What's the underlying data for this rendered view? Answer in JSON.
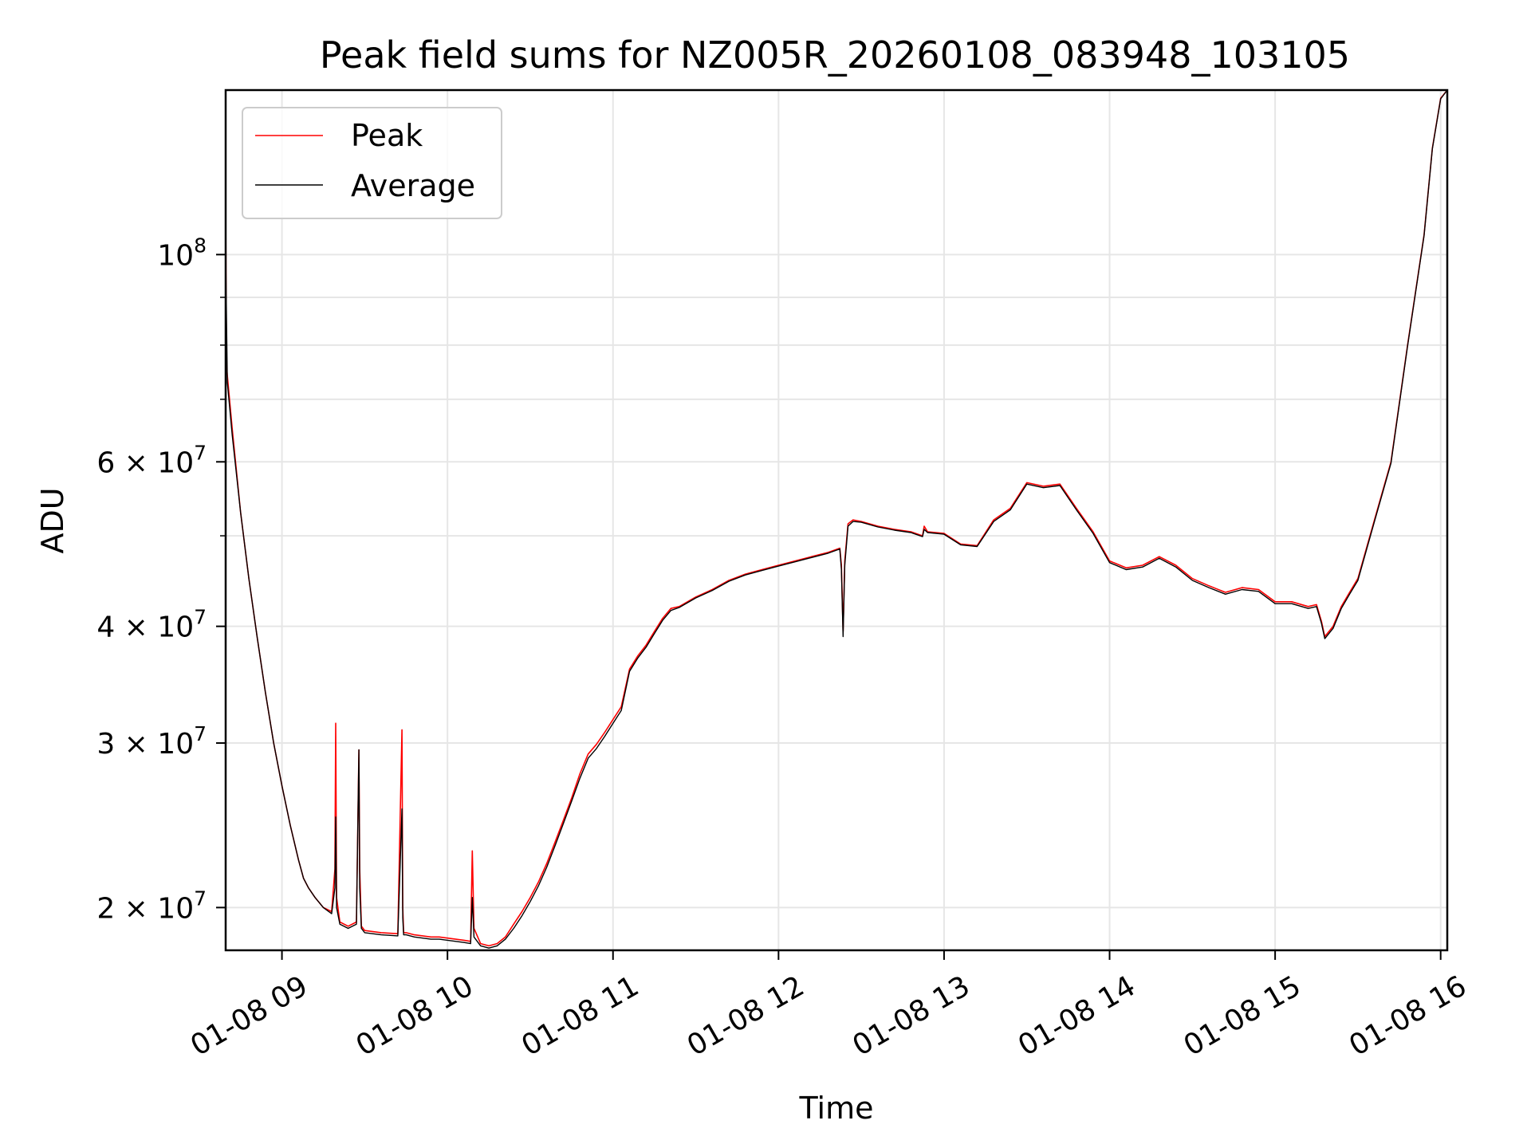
{
  "chart_data": {
    "type": "line",
    "title": "Peak field sums for NZ005R_20260108_083948_103105",
    "xlabel": "Time",
    "ylabel": "ADU",
    "yscale": "log",
    "xlim": [
      8.66,
      16.04
    ],
    "ylim": [
      18000000,
      150000000
    ],
    "grid": true,
    "legend_position": "top-left",
    "x_ticks": [
      {
        "value": 9,
        "label": "01-08 09"
      },
      {
        "value": 10,
        "label": "01-08 10"
      },
      {
        "value": 11,
        "label": "01-08 11"
      },
      {
        "value": 12,
        "label": "01-08 12"
      },
      {
        "value": 13,
        "label": "01-08 13"
      },
      {
        "value": 14,
        "label": "01-08 14"
      },
      {
        "value": 15,
        "label": "01-08 15"
      },
      {
        "value": 16,
        "label": "01-08 16"
      }
    ],
    "y_ticks": [
      {
        "value": 20000000,
        "base": "2 × 10",
        "exp": "7"
      },
      {
        "value": 30000000,
        "base": "3 × 10",
        "exp": "7"
      },
      {
        "value": 40000000,
        "base": "4 × 10",
        "exp": "7"
      },
      {
        "value": 60000000,
        "base": "6 × 10",
        "exp": "7"
      },
      {
        "value": 100000000,
        "base": "10",
        "exp": "8"
      }
    ],
    "y_minor_ticks": [
      50000000,
      70000000,
      80000000,
      90000000
    ],
    "series": [
      {
        "name": "Peak",
        "color": "#ff0000",
        "x": [
          8.66,
          8.665,
          8.7,
          8.75,
          8.8,
          8.85,
          8.9,
          8.95,
          9.0,
          9.05,
          9.1,
          9.13,
          9.16,
          9.2,
          9.25,
          9.3,
          9.32,
          9.325,
          9.33,
          9.35,
          9.4,
          9.45,
          9.465,
          9.47,
          9.48,
          9.5,
          9.6,
          9.7,
          9.725,
          9.73,
          9.735,
          9.75,
          9.8,
          9.85,
          9.9,
          9.95,
          10.0,
          10.05,
          10.1,
          10.14,
          10.15,
          10.16,
          10.2,
          10.25,
          10.3,
          10.35,
          10.4,
          10.45,
          10.5,
          10.55,
          10.6,
          10.65,
          10.7,
          10.75,
          10.8,
          10.85,
          10.9,
          10.95,
          11.0,
          11.05,
          11.1,
          11.15,
          11.2,
          11.25,
          11.3,
          11.35,
          11.4,
          11.5,
          11.6,
          11.7,
          11.8,
          11.9,
          12.0,
          12.1,
          12.2,
          12.3,
          12.37,
          12.38,
          12.39,
          12.4,
          12.42,
          12.45,
          12.5,
          12.6,
          12.7,
          12.8,
          12.87,
          12.88,
          12.9,
          13.0,
          13.1,
          13.2,
          13.3,
          13.4,
          13.5,
          13.6,
          13.7,
          13.8,
          13.9,
          14.0,
          14.1,
          14.2,
          14.3,
          14.4,
          14.5,
          14.6,
          14.7,
          14.8,
          14.9,
          15.0,
          15.1,
          15.2,
          15.25,
          15.28,
          15.3,
          15.35,
          15.4,
          15.45,
          15.5,
          15.6,
          15.7,
          15.8,
          15.9,
          15.95,
          16.0,
          16.04
        ],
        "values": [
          114000000,
          76000000,
          65000000,
          53000000,
          45000000,
          39000000,
          34000000,
          30000000,
          27000000,
          24500000,
          22500000,
          21500000,
          21000000,
          20500000,
          20000000,
          19800000,
          22000000,
          31500000,
          20500000,
          19300000,
          19100000,
          19300000,
          29500000,
          22000000,
          19100000,
          18900000,
          18800000,
          18750000,
          31000000,
          20000000,
          18800000,
          18800000,
          18700000,
          18650000,
          18600000,
          18600000,
          18550000,
          18500000,
          18450000,
          18400000,
          23000000,
          19000000,
          18300000,
          18200000,
          18300000,
          18600000,
          19200000,
          19800000,
          20500000,
          21300000,
          22300000,
          23500000,
          24800000,
          26200000,
          27800000,
          29200000,
          29900000,
          30800000,
          31800000,
          32800000,
          36000000,
          37200000,
          38200000,
          39500000,
          40800000,
          41800000,
          42000000,
          43000000,
          43800000,
          44800000,
          45500000,
          46000000,
          46500000,
          47000000,
          47500000,
          48000000,
          48500000,
          46500000,
          39500000,
          47000000,
          51500000,
          52000000,
          51800000,
          51200000,
          50800000,
          50500000,
          50000000,
          51200000,
          50500000,
          50300000,
          49000000,
          48800000,
          52000000,
          53500000,
          57000000,
          56500000,
          56800000,
          53500000,
          50500000,
          47000000,
          46200000,
          46500000,
          47500000,
          46500000,
          45000000,
          44200000,
          43500000,
          44000000,
          43800000,
          42500000,
          42500000,
          42000000,
          42200000,
          40500000,
          39000000,
          40000000,
          42000000,
          43500000,
          45000000,
          52000000,
          60000000,
          80000000,
          105000000,
          130000000,
          147000000,
          150000000
        ]
      },
      {
        "name": "Average",
        "color": "#000000",
        "x": [
          8.66,
          8.67,
          8.7,
          8.75,
          8.8,
          8.85,
          8.9,
          8.95,
          9.0,
          9.05,
          9.1,
          9.13,
          9.16,
          9.2,
          9.25,
          9.3,
          9.32,
          9.325,
          9.33,
          9.35,
          9.4,
          9.45,
          9.465,
          9.47,
          9.48,
          9.5,
          9.6,
          9.7,
          9.725,
          9.73,
          9.735,
          9.75,
          9.8,
          9.85,
          9.9,
          9.95,
          10.0,
          10.05,
          10.1,
          10.14,
          10.15,
          10.16,
          10.2,
          10.25,
          10.3,
          10.35,
          10.4,
          10.45,
          10.5,
          10.55,
          10.6,
          10.65,
          10.7,
          10.75,
          10.8,
          10.85,
          10.9,
          10.95,
          11.0,
          11.05,
          11.1,
          11.15,
          11.2,
          11.25,
          11.3,
          11.35,
          11.4,
          11.5,
          11.6,
          11.7,
          11.8,
          11.9,
          12.0,
          12.1,
          12.2,
          12.3,
          12.37,
          12.38,
          12.39,
          12.4,
          12.42,
          12.45,
          12.5,
          12.6,
          12.7,
          12.8,
          12.87,
          12.88,
          12.9,
          13.0,
          13.1,
          13.2,
          13.3,
          13.4,
          13.5,
          13.6,
          13.7,
          13.8,
          13.9,
          14.0,
          14.1,
          14.2,
          14.3,
          14.4,
          14.5,
          14.6,
          14.7,
          14.8,
          14.9,
          15.0,
          15.1,
          15.2,
          15.25,
          15.28,
          15.3,
          15.35,
          15.4,
          15.45,
          15.5,
          15.6,
          15.7,
          15.8,
          15.9,
          15.95,
          16.0,
          16.04
        ],
        "values": [
          100000000,
          73000000,
          64000000,
          53000000,
          45000000,
          39000000,
          34000000,
          30000000,
          27000000,
          24500000,
          22500000,
          21500000,
          21000000,
          20500000,
          20000000,
          19700000,
          21000000,
          25000000,
          20000000,
          19200000,
          19000000,
          19200000,
          29500000,
          21000000,
          19000000,
          18800000,
          18700000,
          18650000,
          25500000,
          19500000,
          18700000,
          18700000,
          18600000,
          18550000,
          18500000,
          18500000,
          18450000,
          18400000,
          18350000,
          18300000,
          20500000,
          18600000,
          18200000,
          18100000,
          18200000,
          18500000,
          19000000,
          19600000,
          20300000,
          21100000,
          22100000,
          23300000,
          24600000,
          26000000,
          27500000,
          28900000,
          29600000,
          30500000,
          31500000,
          32500000,
          35800000,
          37000000,
          38000000,
          39300000,
          40600000,
          41600000,
          41900000,
          42900000,
          43700000,
          44700000,
          45400000,
          45900000,
          46400000,
          46900000,
          47400000,
          47900000,
          48400000,
          46000000,
          39000000,
          46500000,
          51200000,
          51800000,
          51700000,
          51100000,
          50700000,
          50400000,
          49900000,
          50800000,
          50400000,
          50200000,
          48900000,
          48700000,
          51800000,
          53300000,
          56800000,
          56300000,
          56600000,
          53300000,
          50300000,
          46800000,
          46000000,
          46300000,
          47300000,
          46300000,
          44800000,
          44000000,
          43300000,
          43800000,
          43600000,
          42300000,
          42300000,
          41800000,
          42000000,
          40300000,
          38800000,
          39800000,
          41800000,
          43300000,
          44800000,
          51800000,
          59800000,
          79800000,
          104800000,
          129800000,
          146800000,
          150000000
        ]
      }
    ]
  }
}
